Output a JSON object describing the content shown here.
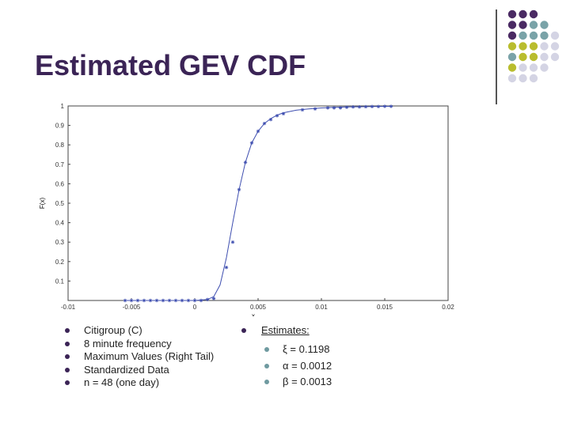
{
  "slide": {
    "title": "Estimated GEV CDF"
  },
  "decor": {
    "dot_rows": [
      [
        "#4a2a63",
        "#4a2a63",
        "#4a2a63"
      ],
      [
        "#4a2a63",
        "#4a2a63",
        "#7aa3a8",
        "#7aa3a8"
      ],
      [
        "#4a2a63",
        "#7aa3a8",
        "#7aa3a8",
        "#7aa3a8",
        "#d4d4e4"
      ],
      [
        "#b9bd2e",
        "#b9bd2e",
        "#b9bd2e",
        "#d4d4e4",
        "#d4d4e4"
      ],
      [
        "#7aa3a8",
        "#b9bd2e",
        "#b9bd2e",
        "#d4d4e4",
        "#d4d4e4"
      ],
      [
        "#b9bd2e",
        "#d4d4e4",
        "#d4d4e4",
        "#d4d4e4"
      ],
      [
        "#d4d4e4",
        "#d4d4e4",
        "#d4d4e4"
      ]
    ]
  },
  "chart_data": {
    "type": "line",
    "title": "",
    "xlabel": "x",
    "ylabel": "F(x)",
    "xlim": [
      -0.01,
      0.02
    ],
    "ylim": [
      0,
      1
    ],
    "grid": false,
    "x_ticks": [
      -0.01,
      -0.005,
      0,
      0.005,
      0.01,
      0.015,
      0.02
    ],
    "x_tick_labels": [
      "-0.01",
      "-0.005",
      "0",
      "0.005",
      "0.01",
      "0.015",
      "0.02"
    ],
    "y_ticks": [
      0.1,
      0.2,
      0.3,
      0.4,
      0.5,
      0.6,
      0.7,
      0.8,
      0.9,
      1
    ],
    "y_tick_labels": [
      "0.1",
      "0.2",
      "0.3",
      "0.4",
      "0.5",
      "0.6",
      "0.7",
      "0.8",
      "0.9",
      "1"
    ],
    "line_color": "#3f4fb0",
    "marker_color": "#3f4fb0",
    "series": [
      {
        "style": "line",
        "x": [
          -0.0055,
          -0.003,
          -0.001,
          0.0,
          0.001,
          0.0015,
          0.002,
          0.0025,
          0.003,
          0.0035,
          0.004,
          0.0045,
          0.005,
          0.0055,
          0.006,
          0.0065,
          0.007,
          0.008,
          0.009,
          0.01,
          0.011,
          0.012,
          0.013,
          0.014,
          0.015,
          0.0155
        ],
        "y": [
          0.0,
          0.0,
          0.0,
          0.0,
          0.005,
          0.02,
          0.08,
          0.22,
          0.4,
          0.57,
          0.71,
          0.81,
          0.87,
          0.91,
          0.935,
          0.953,
          0.965,
          0.978,
          0.985,
          0.99,
          0.993,
          0.995,
          0.996,
          0.997,
          0.998,
          0.998
        ]
      },
      {
        "style": "markers",
        "x": [
          -0.0055,
          -0.005,
          -0.0045,
          -0.004,
          -0.0035,
          -0.003,
          -0.0025,
          -0.002,
          -0.0015,
          -0.001,
          -0.0005,
          0.0,
          0.0005,
          0.001,
          0.0015,
          0.0025,
          0.003,
          0.0035,
          0.004,
          0.0045,
          0.005,
          0.0055,
          0.006,
          0.0065,
          0.007,
          0.0085,
          0.0095,
          0.0105,
          0.011,
          0.0115,
          0.012,
          0.0125,
          0.013,
          0.0135,
          0.014,
          0.0145,
          0.015,
          0.0155
        ],
        "y": [
          0.0,
          0.0,
          0.0,
          0.0,
          0.0,
          0.0,
          0.0,
          0.0,
          0.0,
          0.0,
          0.0,
          0.0,
          0.0,
          0.005,
          0.01,
          0.17,
          0.3,
          0.57,
          0.71,
          0.81,
          0.87,
          0.91,
          0.93,
          0.95,
          0.96,
          0.98,
          0.985,
          0.99,
          0.99,
          0.99,
          0.993,
          0.995,
          0.995,
          0.996,
          0.997,
          0.997,
          0.998,
          0.998
        ]
      }
    ]
  },
  "left_bullets": [
    "Citigroup (C)",
    "8 minute frequency",
    "Maximum Values (Right Tail)",
    "Standardized Data",
    "n = 48 (one day)"
  ],
  "estimates": {
    "heading": "Estimates:",
    "items": [
      "ξ = 0.1198",
      "α = 0.0012",
      "β = 0.0013"
    ]
  }
}
